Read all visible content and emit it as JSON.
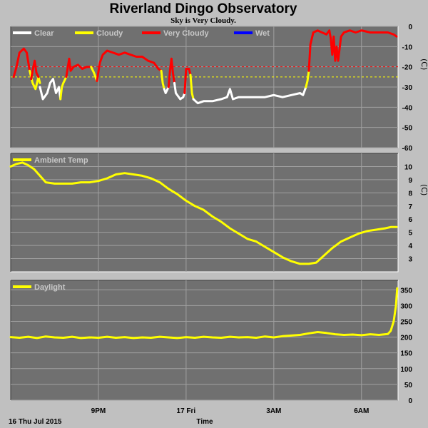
{
  "page": {
    "title": "Riverland Dingo Observatory",
    "subtitle": "Sky is Very Cloudy.",
    "footer_date": "16 Thu Jul 2015",
    "footer_xlabel": "Time",
    "colors": {
      "background": "#c0c0c0",
      "plot_bg": "#707070",
      "grid": "#a0a0a0",
      "clear": "#ffffff",
      "cloudy": "#ffff00",
      "very_cloudy": "#ff0000",
      "wet": "#0000ff"
    }
  },
  "chart_data": [
    {
      "type": "line",
      "panel": "sky",
      "x_unit": "hours since 16 Thu Jul 2015 18:00",
      "xlim": [
        0,
        13.25
      ],
      "x_ticks": [
        {
          "x": 3.0,
          "label": "9PM"
        },
        {
          "x": 6.0,
          "label": "17 Fri"
        },
        {
          "x": 9.0,
          "label": "3AM"
        },
        {
          "x": 12.0,
          "label": "6AM"
        }
      ],
      "ylim": [
        -60,
        0
      ],
      "y_ticks": [
        0,
        -10,
        -20,
        -30,
        -40,
        -50,
        -60
      ],
      "ylabel": "(C)",
      "legend_placement": "top-left",
      "legend": [
        {
          "label": "Clear",
          "color": "#ffffff"
        },
        {
          "label": "Cloudy",
          "color": "#ffff00"
        },
        {
          "label": "Very Cloudy",
          "color": "#ff0000"
        },
        {
          "label": "Wet",
          "color": "#0000ff"
        }
      ],
      "thresholds": [
        {
          "y": -20,
          "color": "#ff0000"
        },
        {
          "y": -25,
          "color": "#ffff00"
        }
      ],
      "series": [
        {
          "name": "Very Cloudy",
          "color": "#ff0000",
          "points": [
            [
              0.1,
              -25
            ],
            [
              0.2,
              -20
            ],
            [
              0.3,
              -13
            ],
            [
              0.45,
              -11
            ],
            [
              0.55,
              -13
            ],
            [
              0.65,
              -22
            ]
          ]
        },
        {
          "name": "Cloudy",
          "color": "#ffff00",
          "points": [
            [
              0.65,
              -22
            ],
            [
              0.75,
              -28
            ],
            [
              0.85,
              -31
            ],
            [
              0.95,
              -25
            ],
            [
              1.0,
              -28
            ]
          ]
        },
        {
          "name": "Very Cloudy",
          "color": "#ff0000",
          "points": [
            [
              0.7,
              -26
            ],
            [
              0.75,
              -22
            ],
            [
              0.82,
              -17
            ],
            [
              0.88,
              -23
            ],
            [
              0.95,
              -25
            ]
          ]
        },
        {
          "name": "Clear",
          "color": "#ffffff",
          "points": [
            [
              1.0,
              -30
            ],
            [
              1.1,
              -36
            ],
            [
              1.25,
              -33
            ],
            [
              1.35,
              -28
            ],
            [
              1.45,
              -26
            ],
            [
              1.55,
              -33
            ],
            [
              1.65,
              -30
            ],
            [
              1.7,
              -36
            ]
          ]
        },
        {
          "name": "Cloudy",
          "color": "#ffff00",
          "points": [
            [
              1.7,
              -36
            ],
            [
              1.75,
              -30
            ],
            [
              1.8,
              -28
            ],
            [
              1.9,
              -25
            ]
          ]
        },
        {
          "name": "Very Cloudy",
          "color": "#ff0000",
          "points": [
            [
              1.9,
              -25
            ],
            [
              2.0,
              -16
            ],
            [
              2.05,
              -22
            ],
            [
              2.15,
              -20
            ],
            [
              2.3,
              -19
            ],
            [
              2.45,
              -21
            ],
            [
              2.6,
              -20
            ],
            [
              2.75,
              -20
            ]
          ]
        },
        {
          "name": "Cloudy",
          "color": "#ffff00",
          "points": [
            [
              2.75,
              -20
            ],
            [
              2.85,
              -23
            ],
            [
              2.95,
              -27
            ]
          ]
        },
        {
          "name": "Very Cloudy",
          "color": "#ff0000",
          "points": [
            [
              2.95,
              -27
            ],
            [
              3.05,
              -18
            ],
            [
              3.15,
              -14
            ],
            [
              3.3,
              -12
            ],
            [
              3.5,
              -13
            ],
            [
              3.7,
              -14
            ],
            [
              3.9,
              -13
            ],
            [
              4.1,
              -14
            ],
            [
              4.3,
              -15
            ],
            [
              4.5,
              -15
            ],
            [
              4.7,
              -17
            ],
            [
              4.9,
              -18
            ],
            [
              5.05,
              -21
            ],
            [
              5.15,
              -22
            ]
          ]
        },
        {
          "name": "Cloudy",
          "color": "#ffff00",
          "points": [
            [
              5.15,
              -22
            ],
            [
              5.2,
              -28
            ],
            [
              5.25,
              -31
            ]
          ]
        },
        {
          "name": "Clear",
          "color": "#ffffff",
          "points": [
            [
              5.25,
              -31
            ],
            [
              5.3,
              -33
            ],
            [
              5.4,
              -30
            ]
          ]
        },
        {
          "name": "Very Cloudy",
          "color": "#ff0000",
          "points": [
            [
              5.4,
              -30
            ],
            [
              5.45,
              -22
            ],
            [
              5.5,
              -16
            ],
            [
              5.55,
              -23
            ],
            [
              5.6,
              -28
            ]
          ]
        },
        {
          "name": "Clear",
          "color": "#ffffff",
          "points": [
            [
              5.6,
              -28
            ],
            [
              5.65,
              -33
            ],
            [
              5.8,
              -36
            ],
            [
              5.9,
              -35
            ],
            [
              5.95,
              -33
            ]
          ]
        },
        {
          "name": "Very Cloudy",
          "color": "#ff0000",
          "points": [
            [
              5.95,
              -33
            ],
            [
              6.0,
              -21
            ],
            [
              6.1,
              -21
            ],
            [
              6.15,
              -24
            ]
          ]
        },
        {
          "name": "Cloudy",
          "color": "#ffff00",
          "points": [
            [
              6.15,
              -24
            ],
            [
              6.2,
              -33
            ],
            [
              6.25,
              -36
            ]
          ]
        },
        {
          "name": "Clear",
          "color": "#ffffff",
          "points": [
            [
              6.25,
              -36
            ],
            [
              6.4,
              -38
            ],
            [
              6.6,
              -37
            ],
            [
              6.9,
              -37
            ],
            [
              7.2,
              -36
            ],
            [
              7.4,
              -35
            ],
            [
              7.5,
              -31
            ],
            [
              7.6,
              -36
            ],
            [
              7.8,
              -35
            ],
            [
              8.1,
              -35
            ],
            [
              8.4,
              -35
            ],
            [
              8.7,
              -35
            ],
            [
              9.0,
              -34
            ],
            [
              9.3,
              -35
            ],
            [
              9.6,
              -34
            ],
            [
              9.9,
              -33
            ],
            [
              10.0,
              -34
            ],
            [
              10.1,
              -30
            ]
          ]
        },
        {
          "name": "Cloudy",
          "color": "#ffff00",
          "points": [
            [
              10.1,
              -30
            ],
            [
              10.15,
              -27
            ],
            [
              10.2,
              -22
            ]
          ]
        },
        {
          "name": "Very Cloudy",
          "color": "#ff0000",
          "points": [
            [
              10.2,
              -22
            ],
            [
              10.25,
              -9
            ],
            [
              10.35,
              -3
            ],
            [
              10.5,
              -2
            ],
            [
              10.65,
              -3
            ],
            [
              10.8,
              -4
            ],
            [
              10.9,
              -2
            ],
            [
              10.95,
              -6
            ],
            [
              11.0,
              -14
            ],
            [
              11.05,
              -5
            ],
            [
              11.1,
              -17
            ],
            [
              11.15,
              -10
            ],
            [
              11.2,
              -17
            ],
            [
              11.3,
              -5
            ],
            [
              11.4,
              -3
            ],
            [
              11.6,
              -2
            ],
            [
              11.8,
              -3
            ],
            [
              12.0,
              -2
            ],
            [
              12.3,
              -3
            ],
            [
              12.6,
              -3
            ],
            [
              12.9,
              -3
            ],
            [
              13.1,
              -4
            ],
            [
              13.2,
              -5
            ]
          ]
        }
      ]
    },
    {
      "type": "line",
      "panel": "ambient",
      "x_unit": "hours since 16 Thu Jul 2015 18:00",
      "xlim": [
        0,
        13.25
      ],
      "x_ticks": [
        {
          "x": 3.0,
          "label": "9PM"
        },
        {
          "x": 6.0,
          "label": "17 Fri"
        },
        {
          "x": 9.0,
          "label": "3AM"
        },
        {
          "x": 12.0,
          "label": "6AM"
        }
      ],
      "ylim": [
        2,
        11
      ],
      "y_ticks": [
        3,
        4,
        5,
        6,
        7,
        8,
        9,
        10
      ],
      "ylabel": "(C)",
      "legend_placement": "top-left",
      "series": [
        {
          "name": "Ambient Temp",
          "color": "#ffff00",
          "points": [
            [
              0.0,
              10.0
            ],
            [
              0.2,
              10.2
            ],
            [
              0.4,
              10.3
            ],
            [
              0.6,
              10.1
            ],
            [
              0.8,
              9.8
            ],
            [
              1.0,
              9.3
            ],
            [
              1.2,
              8.8
            ],
            [
              1.5,
              8.7
            ],
            [
              1.8,
              8.7
            ],
            [
              2.1,
              8.7
            ],
            [
              2.4,
              8.8
            ],
            [
              2.7,
              8.8
            ],
            [
              3.0,
              8.9
            ],
            [
              3.3,
              9.1
            ],
            [
              3.6,
              9.4
            ],
            [
              3.9,
              9.5
            ],
            [
              4.2,
              9.4
            ],
            [
              4.5,
              9.3
            ],
            [
              4.8,
              9.1
            ],
            [
              5.1,
              8.8
            ],
            [
              5.4,
              8.3
            ],
            [
              5.7,
              7.9
            ],
            [
              6.0,
              7.4
            ],
            [
              6.3,
              7.0
            ],
            [
              6.6,
              6.7
            ],
            [
              6.9,
              6.2
            ],
            [
              7.2,
              5.8
            ],
            [
              7.5,
              5.3
            ],
            [
              7.8,
              4.9
            ],
            [
              8.1,
              4.5
            ],
            [
              8.4,
              4.3
            ],
            [
              8.7,
              3.9
            ],
            [
              9.0,
              3.5
            ],
            [
              9.3,
              3.1
            ],
            [
              9.6,
              2.8
            ],
            [
              9.9,
              2.6
            ],
            [
              10.2,
              2.6
            ],
            [
              10.45,
              2.7
            ],
            [
              10.7,
              3.2
            ],
            [
              11.0,
              3.8
            ],
            [
              11.3,
              4.3
            ],
            [
              11.6,
              4.6
            ],
            [
              11.9,
              4.9
            ],
            [
              12.2,
              5.1
            ],
            [
              12.5,
              5.2
            ],
            [
              12.8,
              5.3
            ],
            [
              13.0,
              5.4
            ],
            [
              13.2,
              5.4
            ]
          ]
        }
      ]
    },
    {
      "type": "line",
      "panel": "daylight",
      "x_unit": "hours since 16 Thu Jul 2015 18:00",
      "xlim": [
        0,
        13.25
      ],
      "x_ticks": [
        {
          "x": 3.0,
          "label": "9PM"
        },
        {
          "x": 6.0,
          "label": "17 Fri"
        },
        {
          "x": 9.0,
          "label": "3AM"
        },
        {
          "x": 12.0,
          "label": "6AM"
        }
      ],
      "ylim": [
        0,
        380
      ],
      "y_ticks": [
        0,
        50,
        100,
        150,
        200,
        250,
        300,
        350
      ],
      "legend_placement": "top-left",
      "series": [
        {
          "name": "Daylight",
          "color": "#ffff00",
          "points": [
            [
              0.0,
              200
            ],
            [
              0.3,
              198
            ],
            [
              0.6,
              201
            ],
            [
              0.9,
              197
            ],
            [
              1.2,
              202
            ],
            [
              1.5,
              199
            ],
            [
              1.8,
              198
            ],
            [
              2.1,
              201
            ],
            [
              2.4,
              197
            ],
            [
              2.7,
              199
            ],
            [
              3.0,
              198
            ],
            [
              3.3,
              201
            ],
            [
              3.6,
              198
            ],
            [
              3.9,
              200
            ],
            [
              4.2,
              197
            ],
            [
              4.5,
              199
            ],
            [
              4.8,
              198
            ],
            [
              5.1,
              201
            ],
            [
              5.4,
              199
            ],
            [
              5.7,
              197
            ],
            [
              6.0,
              200
            ],
            [
              6.3,
              198
            ],
            [
              6.6,
              201
            ],
            [
              6.9,
              199
            ],
            [
              7.2,
              198
            ],
            [
              7.5,
              201
            ],
            [
              7.8,
              199
            ],
            [
              8.1,
              200
            ],
            [
              8.4,
              198
            ],
            [
              8.7,
              202
            ],
            [
              9.0,
              199
            ],
            [
              9.3,
              203
            ],
            [
              9.6,
              205
            ],
            [
              9.9,
              207
            ],
            [
              10.2,
              212
            ],
            [
              10.5,
              216
            ],
            [
              10.8,
              213
            ],
            [
              11.1,
              209
            ],
            [
              11.4,
              207
            ],
            [
              11.7,
              208
            ],
            [
              12.0,
              206
            ],
            [
              12.3,
              209
            ],
            [
              12.6,
              207
            ],
            [
              12.9,
              210
            ],
            [
              13.0,
              220
            ],
            [
              13.1,
              250
            ],
            [
              13.18,
              300
            ],
            [
              13.22,
              355
            ]
          ]
        }
      ]
    }
  ]
}
